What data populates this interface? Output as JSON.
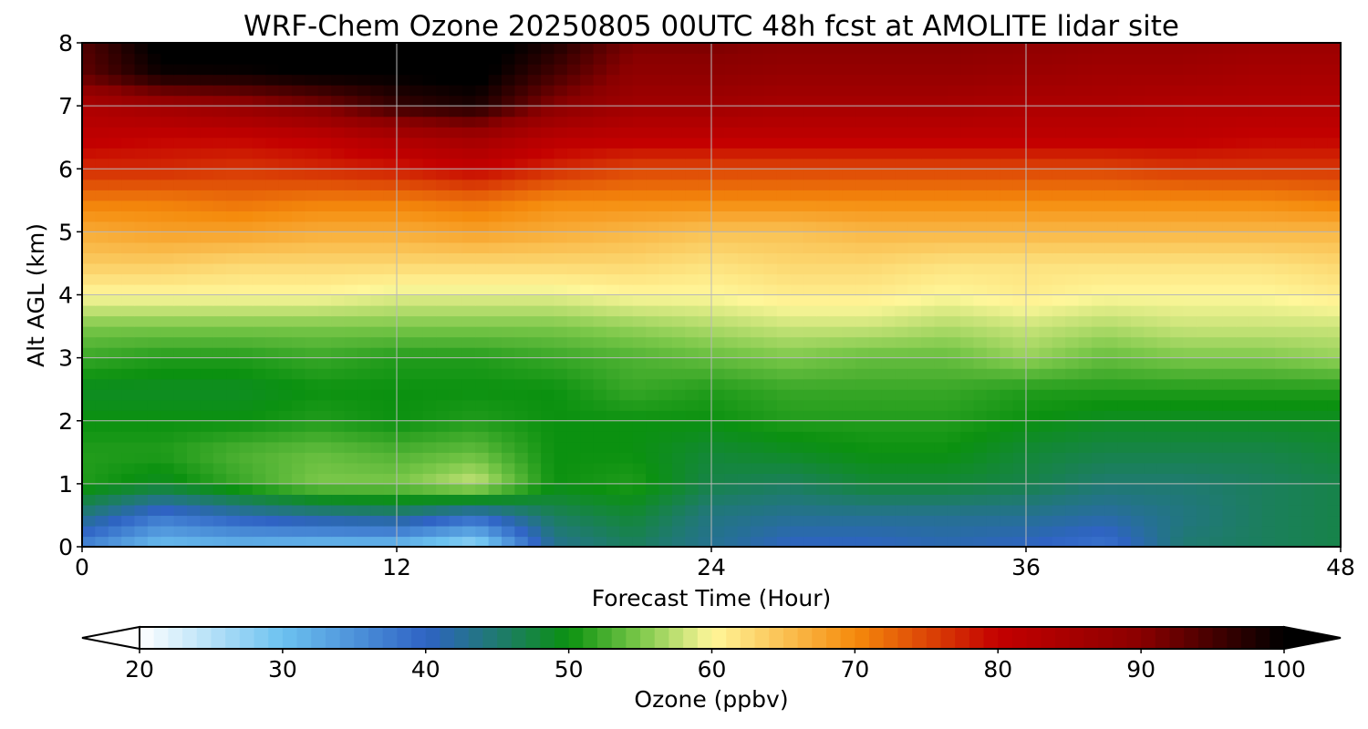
{
  "chart_data": {
    "type": "heatmap",
    "title": "WRF-Chem Ozone  20250805 00UTC 48h fcst at AMOLITE lidar site",
    "xlabel": "Forecast Time (Hour)",
    "ylabel": "Alt AGL (km)",
    "xlim": [
      0,
      48
    ],
    "ylim": [
      0,
      8
    ],
    "x_ticks": [
      "0",
      "12",
      "24",
      "36",
      "48"
    ],
    "y_ticks": [
      "0",
      "1",
      "2",
      "3",
      "4",
      "5",
      "6",
      "7",
      "8"
    ],
    "grid": true,
    "colorbar": {
      "label": "Ozone  (ppbv)",
      "range": [
        20,
        100
      ],
      "ticks": [
        "20",
        "30",
        "40",
        "50",
        "60",
        "70",
        "80",
        "90",
        "100"
      ],
      "extend": "both",
      "stops": [
        {
          "value": 20,
          "color": "#ffffff"
        },
        {
          "value": 30,
          "color": "#6cc2f0"
        },
        {
          "value": 40,
          "color": "#2f63c4"
        },
        {
          "value": 45,
          "color": "#1f7a70"
        },
        {
          "value": 50,
          "color": "#0b9110"
        },
        {
          "value": 55,
          "color": "#7cc84a"
        },
        {
          "value": 60,
          "color": "#fff79a"
        },
        {
          "value": 70,
          "color": "#f58b0c"
        },
        {
          "value": 80,
          "color": "#c40000"
        },
        {
          "value": 90,
          "color": "#8a0000"
        },
        {
          "value": 100,
          "color": "#000000"
        }
      ]
    },
    "x": [
      0,
      3,
      6,
      9,
      12,
      15,
      18,
      21,
      24,
      27,
      30,
      33,
      36,
      39,
      42,
      45,
      48
    ],
    "y": [
      0,
      0.5,
      1,
      1.5,
      2,
      2.5,
      3,
      3.5,
      4,
      4.5,
      5,
      5.5,
      6,
      6.5,
      7,
      7.5,
      8
    ],
    "z": [
      [
        36,
        30,
        31,
        30,
        30,
        26,
        43,
        46,
        43,
        40,
        40,
        41,
        40,
        38,
        45,
        46,
        47
      ],
      [
        44,
        38,
        41,
        43,
        44,
        40,
        46,
        48,
        44,
        43,
        43,
        43,
        43,
        42,
        44,
        46,
        47
      ],
      [
        51,
        49,
        52,
        55,
        55,
        58,
        50,
        51,
        47,
        46,
        48,
        48,
        47,
        45,
        45,
        46,
        47
      ],
      [
        51,
        51,
        53,
        54,
        53,
        54,
        50,
        50,
        48,
        49,
        50,
        50,
        48,
        47,
        47,
        47,
        48
      ],
      [
        50,
        50,
        50,
        51,
        50,
        51,
        50,
        50,
        50,
        51,
        51,
        51,
        50,
        49,
        49,
        49,
        49
      ],
      [
        49,
        49,
        49,
        50,
        50,
        50,
        50,
        52,
        51,
        52,
        52,
        52,
        51,
        51,
        51,
        51,
        51
      ],
      [
        52,
        51,
        51,
        52,
        51,
        51,
        52,
        53,
        54,
        55,
        54,
        54,
        56,
        54,
        55,
        55,
        56
      ],
      [
        55,
        55,
        55,
        55,
        55,
        55,
        55,
        56,
        57,
        58,
        58,
        57,
        58,
        57,
        58,
        58,
        58
      ],
      [
        60,
        60,
        60,
        60,
        59,
        59,
        59,
        60,
        60,
        61,
        61,
        60,
        61,
        60,
        60,
        60,
        61
      ],
      [
        64,
        64,
        63,
        63,
        63,
        63,
        63,
        63,
        62,
        63,
        63,
        62,
        62,
        62,
        62,
        62,
        63
      ],
      [
        67,
        68,
        68,
        67,
        67,
        68,
        67,
        66,
        65,
        65,
        66,
        66,
        66,
        66,
        66,
        66,
        66
      ],
      [
        71,
        71,
        72,
        71,
        71,
        72,
        70,
        70,
        70,
        70,
        70,
        70,
        70,
        70,
        70,
        70,
        71
      ],
      [
        77,
        77,
        76,
        77,
        78,
        80,
        77,
        75,
        75,
        75,
        75,
        75,
        75,
        75,
        76,
        76,
        76
      ],
      [
        81,
        80,
        80,
        81,
        84,
        86,
        82,
        81,
        81,
        81,
        81,
        81,
        81,
        81,
        81,
        80,
        80
      ],
      [
        84,
        86,
        88,
        91,
        96,
        98,
        90,
        86,
        86,
        85,
        85,
        85,
        84,
        84,
        83,
        83,
        83
      ],
      [
        93,
        99,
        99,
        100,
        100,
        101,
        95,
        89,
        89,
        88,
        88,
        88,
        87,
        86,
        86,
        85,
        85
      ],
      [
        94,
        101,
        102,
        102,
        102,
        102,
        98,
        91,
        91,
        90,
        90,
        90,
        89,
        88,
        88,
        87,
        87
      ]
    ]
  }
}
